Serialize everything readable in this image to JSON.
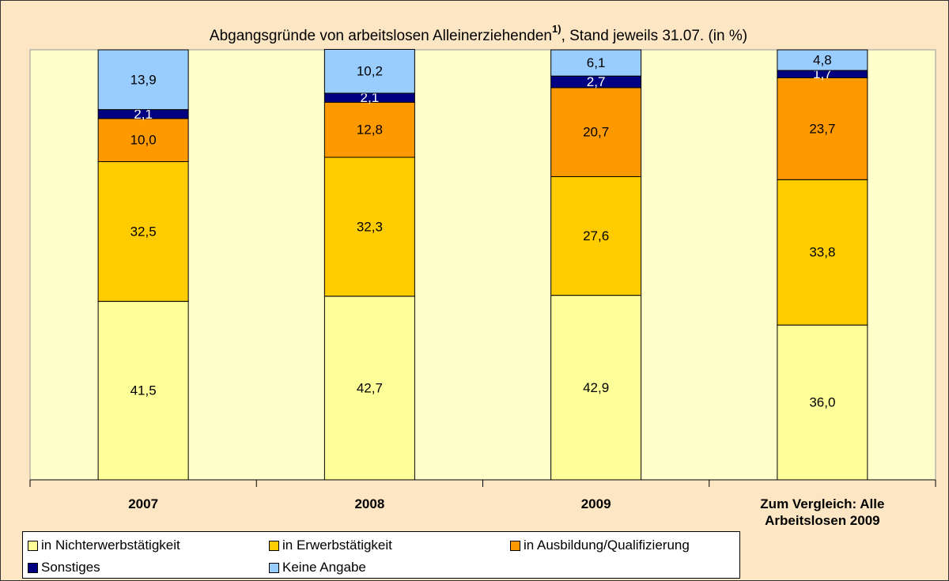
{
  "chart_data": {
    "type": "stacked_bar",
    "title": "Abgangsgründe von arbeitslosen Alleinerziehenden",
    "title_note": "1)",
    "title_suffix": ", Stand jeweils 31.07.  (in %)",
    "categories": [
      "2007",
      "2008",
      "2009",
      "Zum Vergleich: Alle Arbeitslosen 2009"
    ],
    "ylim": [
      0,
      100
    ],
    "series": [
      {
        "name": "in Nichterwerbstätigkeit",
        "color": "#ffff99",
        "label_color": "#000000",
        "values": [
          41.5,
          42.7,
          42.9,
          36.0
        ],
        "value_labels": [
          "41,5",
          "42,7",
          "42,9",
          "36,0"
        ]
      },
      {
        "name": "in Erwerbstätigkeit",
        "color": "#ffcc00",
        "label_color": "#000000",
        "values": [
          32.5,
          32.3,
          27.6,
          33.8
        ],
        "value_labels": [
          "32,5",
          "32,3",
          "27,6",
          "33,8"
        ]
      },
      {
        "name": "in Ausbildung/Qualifizierung",
        "color": "#ff9900",
        "label_color": "#000000",
        "values": [
          10.0,
          12.8,
          20.7,
          23.7
        ],
        "value_labels": [
          "10,0",
          "12,8",
          "20,7",
          "23,7"
        ]
      },
      {
        "name": "Sonstiges",
        "color": "#000080",
        "label_color": "#ffffff",
        "values": [
          2.1,
          2.1,
          2.7,
          1.7
        ],
        "value_labels": [
          "2,1",
          "2,1",
          "2,7",
          "1,7"
        ]
      },
      {
        "name": "Keine Angabe",
        "color": "#99ccff",
        "label_color": "#000000",
        "values": [
          13.9,
          10.2,
          6.1,
          4.8
        ],
        "value_labels": [
          "13,9",
          "10,2",
          "6,1",
          "4,8"
        ]
      }
    ]
  }
}
